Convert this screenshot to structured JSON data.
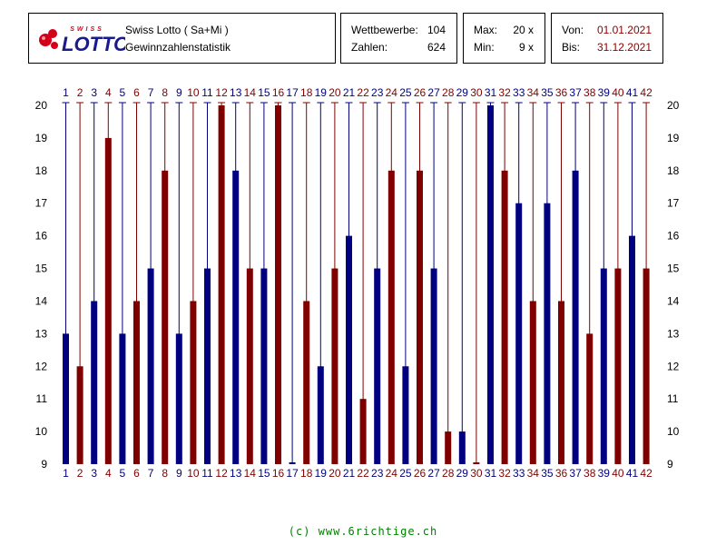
{
  "header": {
    "brand_small": "SWISS",
    "brand_large": "LOTTO",
    "title_line1": "Swiss Lotto ( Sa+Mi )",
    "title_line2": "Gewinnzahlenstatistik",
    "wettbewerbe_label": "Wettbewerbe:",
    "wettbewerbe_value": "104",
    "zahlen_label": "Zahlen:",
    "zahlen_value": "624",
    "max_label": "Max:",
    "max_value": "20 x",
    "min_label": "Min:",
    "min_value": "9 x",
    "von_label": "Von:",
    "von_value": "01.01.2021",
    "bis_label": "Bis:",
    "bis_value": "31.12.2021"
  },
  "colors": {
    "blue": "#000080",
    "red": "#800000",
    "logo_red": "#d4001a"
  },
  "chart_data": {
    "type": "bar",
    "categories": [
      "1",
      "2",
      "3",
      "4",
      "5",
      "6",
      "7",
      "8",
      "9",
      "10",
      "11",
      "12",
      "13",
      "14",
      "15",
      "16",
      "17",
      "18",
      "19",
      "20",
      "21",
      "22",
      "23",
      "24",
      "25",
      "26",
      "27",
      "28",
      "29",
      "30",
      "31",
      "32",
      "33",
      "34",
      "35",
      "36",
      "37",
      "38",
      "39",
      "40",
      "41",
      "42"
    ],
    "values": [
      13,
      12,
      14,
      19,
      13,
      14,
      15,
      18,
      13,
      14,
      15,
      20,
      18,
      15,
      15,
      20,
      9,
      14,
      12,
      15,
      16,
      11,
      15,
      18,
      12,
      18,
      15,
      10,
      10,
      9,
      20,
      18,
      17,
      14,
      17,
      14,
      18,
      13,
      15,
      15,
      16,
      15
    ],
    "bar_colors": [
      "blue",
      "red",
      "blue",
      "red",
      "blue",
      "red",
      "blue",
      "red",
      "blue",
      "red",
      "blue",
      "red",
      "blue",
      "red",
      "blue",
      "red",
      "blue",
      "red",
      "blue",
      "red",
      "blue",
      "red",
      "blue",
      "red",
      "blue",
      "red",
      "blue",
      "red",
      "blue",
      "red",
      "blue",
      "red",
      "blue",
      "red",
      "blue",
      "red",
      "blue",
      "red",
      "blue",
      "red",
      "blue",
      "red"
    ],
    "yticks": [
      9,
      10,
      11,
      12,
      13,
      14,
      15,
      16,
      17,
      18,
      19,
      20
    ],
    "ylim": [
      9,
      20
    ],
    "grid": false
  },
  "footer": {
    "text": "(c) www.6richtige.ch"
  }
}
